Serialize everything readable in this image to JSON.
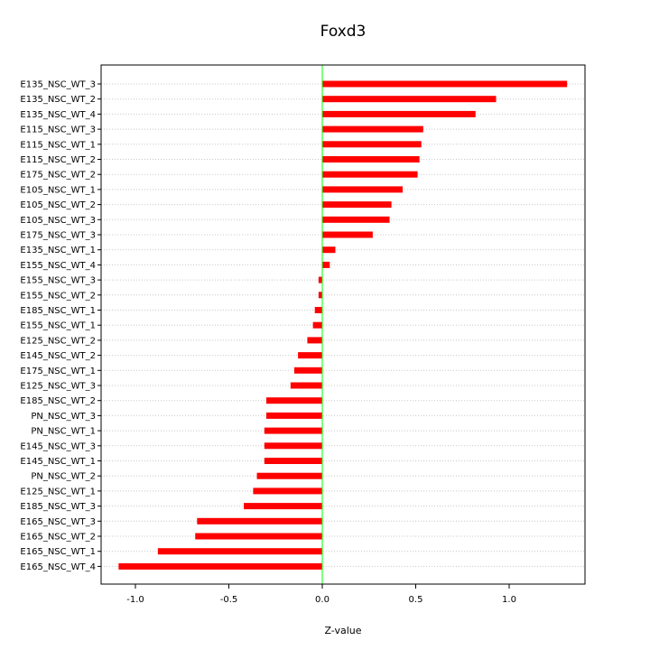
{
  "chart_data": {
    "type": "bar",
    "orientation": "horizontal",
    "title": "Foxd3",
    "xlabel": "Z-value",
    "ylabel": "",
    "xlim": [
      -1.1,
      1.4
    ],
    "x_ticks": [
      -1.0,
      -0.5,
      0.0,
      0.5,
      1.0
    ],
    "x_tick_labels": [
      "-1.0",
      "-0.5",
      "0.0",
      "0.5",
      "1.0"
    ],
    "grid": "horizontal dotted",
    "zero_line_color": "#00ff00",
    "bar_color": "#ff0000",
    "categories": [
      "E135_NSC_WT_3",
      "E135_NSC_WT_2",
      "E135_NSC_WT_4",
      "E115_NSC_WT_3",
      "E115_NSC_WT_1",
      "E115_NSC_WT_2",
      "E175_NSC_WT_2",
      "E105_NSC_WT_1",
      "E105_NSC_WT_2",
      "E105_NSC_WT_3",
      "E175_NSC_WT_3",
      "E135_NSC_WT_1",
      "E155_NSC_WT_4",
      "E155_NSC_WT_3",
      "E155_NSC_WT_2",
      "E185_NSC_WT_1",
      "E155_NSC_WT_1",
      "E125_NSC_WT_2",
      "E145_NSC_WT_2",
      "E175_NSC_WT_1",
      "E125_NSC_WT_3",
      "E185_NSC_WT_2",
      "PN_NSC_WT_3",
      "PN_NSC_WT_1",
      "E145_NSC_WT_3",
      "E145_NSC_WT_1",
      "PN_NSC_WT_2",
      "E125_NSC_WT_1",
      "E185_NSC_WT_3",
      "E165_NSC_WT_3",
      "E165_NSC_WT_2",
      "E165_NSC_WT_1",
      "E165_NSC_WT_4"
    ],
    "values": [
      1.31,
      0.93,
      0.82,
      0.54,
      0.53,
      0.52,
      0.51,
      0.43,
      0.37,
      0.36,
      0.27,
      0.07,
      0.04,
      -0.02,
      -0.02,
      -0.04,
      -0.05,
      -0.08,
      -0.13,
      -0.15,
      -0.17,
      -0.3,
      -0.3,
      -0.31,
      -0.31,
      -0.31,
      -0.35,
      -0.37,
      -0.42,
      -0.67,
      -0.68,
      -0.88,
      -1.09
    ]
  }
}
